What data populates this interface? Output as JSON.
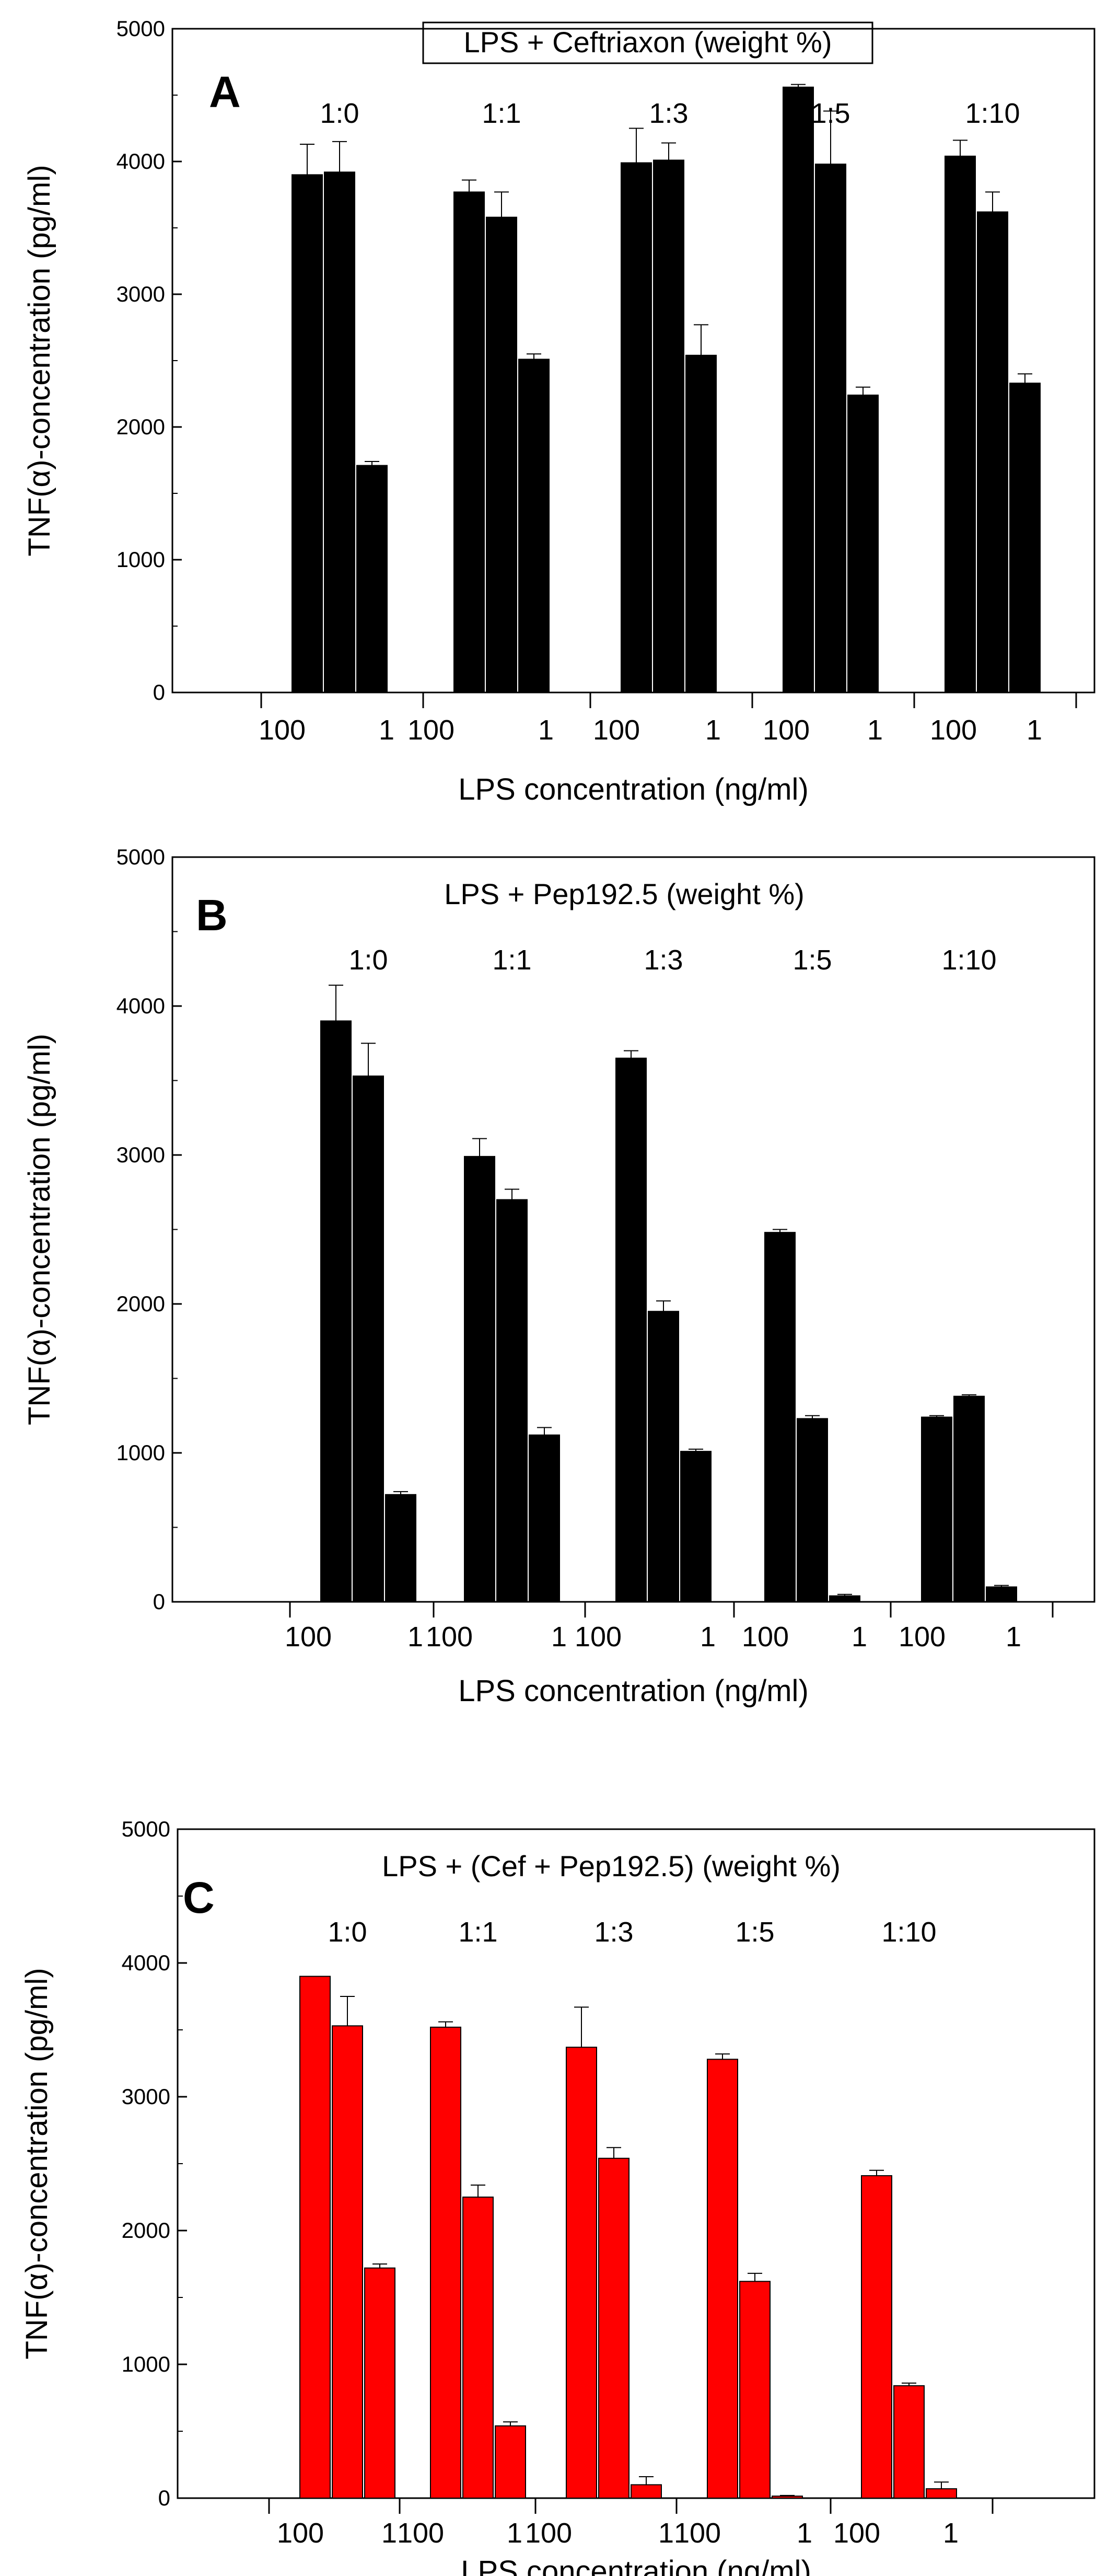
{
  "chart_data": [
    {
      "type": "bar",
      "panel": "A",
      "title": "LPS + Ceftriaxon (weight %)",
      "title_boxed": true,
      "ylabel": "TNF(α)-concentration (pg/ml)",
      "xlabel": "LPS concentration (ng/ml)",
      "ylim": [
        0,
        5000
      ],
      "yticks": [
        0,
        1000,
        2000,
        3000,
        4000,
        5000
      ],
      "bar_color": "#000000",
      "groups": [
        {
          "ratio": "1:0",
          "left_label": "100",
          "right_label": "1",
          "values": [
            3900,
            3920,
            1710
          ],
          "errors": [
            230,
            230,
            30
          ]
        },
        {
          "ratio": "1:1",
          "left_label": "100",
          "right_label": "1",
          "values": [
            3770,
            3580,
            2510
          ],
          "errors": [
            90,
            190,
            40
          ]
        },
        {
          "ratio": "1:3",
          "left_label": "100",
          "right_label": "1",
          "values": [
            3990,
            4010,
            2540
          ],
          "errors": [
            260,
            130,
            230
          ]
        },
        {
          "ratio": "1:5",
          "left_label": "100",
          "right_label": "1",
          "values": [
            4560,
            3980,
            2240
          ],
          "errors": [
            20,
            400,
            60
          ]
        },
        {
          "ratio": "1:10",
          "left_label": "100",
          "right_label": "1",
          "values": [
            4040,
            3620,
            2330
          ],
          "errors": [
            120,
            150,
            70
          ]
        }
      ]
    },
    {
      "type": "bar",
      "panel": "B",
      "title": "LPS + Pep192.5 (weight %)",
      "title_boxed": false,
      "ylabel": "TNF(α)-concentration (pg/ml)",
      "xlabel": "LPS concentration (ng/ml)",
      "ylim": [
        0,
        5000
      ],
      "yticks": [
        0,
        1000,
        2000,
        3000,
        4000,
        5000
      ],
      "bar_color": "#000000",
      "groups": [
        {
          "ratio": "1:0",
          "left_label": "100",
          "right_label": "1",
          "values": [
            3900,
            3530,
            720
          ],
          "errors": [
            240,
            220,
            20
          ]
        },
        {
          "ratio": "1:1",
          "left_label": "100",
          "right_label": "1",
          "values": [
            2990,
            2700,
            1120
          ],
          "errors": [
            120,
            70,
            50
          ]
        },
        {
          "ratio": "1:3",
          "left_label": "100",
          "right_label": "1",
          "values": [
            3650,
            1950,
            1010
          ],
          "errors": [
            50,
            70,
            15
          ]
        },
        {
          "ratio": "1:5",
          "left_label": "100",
          "right_label": "1",
          "values": [
            2480,
            1230,
            40
          ],
          "errors": [
            20,
            20,
            10
          ]
        },
        {
          "ratio": "1:10",
          "left_label": "100",
          "right_label": "1",
          "values": [
            1240,
            1380,
            100
          ],
          "errors": [
            10,
            10,
            10
          ]
        }
      ]
    },
    {
      "type": "bar",
      "panel": "C",
      "title": "LPS + (Cef + Pep192.5) (weight %)",
      "title_boxed": false,
      "ylabel": "TNF(α)-concentration (pg/ml)",
      "xlabel": "LPS concentration (ng/ml)",
      "ylim": [
        0,
        5000
      ],
      "yticks": [
        0,
        1000,
        2000,
        3000,
        4000,
        5000
      ],
      "bar_color": "#ff0000",
      "groups": [
        {
          "ratio": "1:0",
          "left_label": "100",
          "right_label": "1",
          "values": [
            3900,
            3530,
            1720
          ],
          "errors": [
            0,
            220,
            30
          ]
        },
        {
          "ratio": "1:1",
          "left_label": "100",
          "right_label": "1",
          "values": [
            3520,
            2250,
            540
          ],
          "errors": [
            40,
            90,
            30
          ]
        },
        {
          "ratio": "1:3",
          "left_label": "100",
          "right_label": "1",
          "values": [
            3370,
            2540,
            100
          ],
          "errors": [
            300,
            80,
            60
          ]
        },
        {
          "ratio": "1:5",
          "left_label": "100",
          "right_label": "1",
          "values": [
            3280,
            1620,
            15
          ],
          "errors": [
            40,
            60,
            5
          ]
        },
        {
          "ratio": "1:10",
          "left_label": "100",
          "right_label": "1",
          "values": [
            2410,
            840,
            70
          ],
          "errors": [
            40,
            20,
            50
          ]
        }
      ]
    }
  ]
}
